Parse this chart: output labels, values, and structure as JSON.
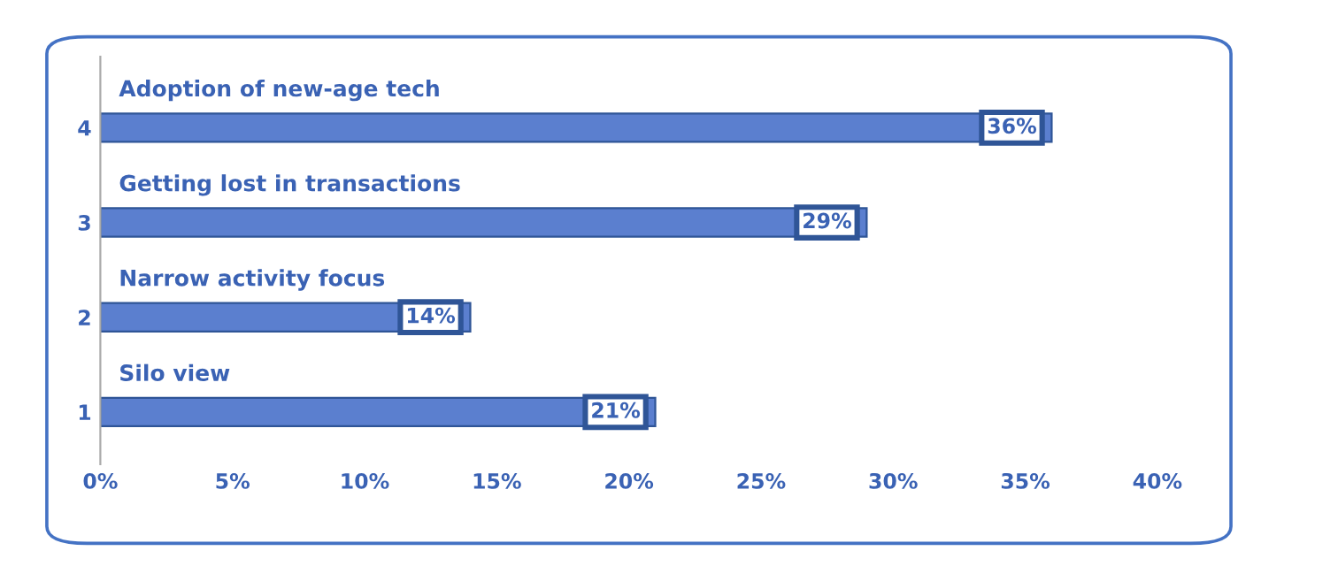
{
  "chart_data": {
    "type": "bar",
    "orientation": "horizontal",
    "categories": [
      "4",
      "3",
      "2",
      "1"
    ],
    "values": [
      36,
      29,
      14,
      21
    ],
    "value_labels": [
      "36%",
      "29%",
      "14%",
      "21%"
    ],
    "color": "#5b7fcf",
    "annotations": [
      "Adoption of new-age tech",
      "Getting lost in transactions",
      "Narrow activity focus",
      "Silo view"
    ],
    "xlim": [
      0,
      40
    ],
    "xticks": [
      {
        "value": 0,
        "label": "0%"
      },
      {
        "value": 5,
        "label": "5%"
      },
      {
        "value": 10,
        "label": "10%"
      },
      {
        "value": 15,
        "label": "15%"
      },
      {
        "value": 20,
        "label": "20%"
      },
      {
        "value": 25,
        "label": "25%"
      },
      {
        "value": 30,
        "label": "30%"
      },
      {
        "value": 35,
        "label": "35%"
      },
      {
        "value": 40,
        "label": "40%"
      }
    ],
    "grid": false
  }
}
